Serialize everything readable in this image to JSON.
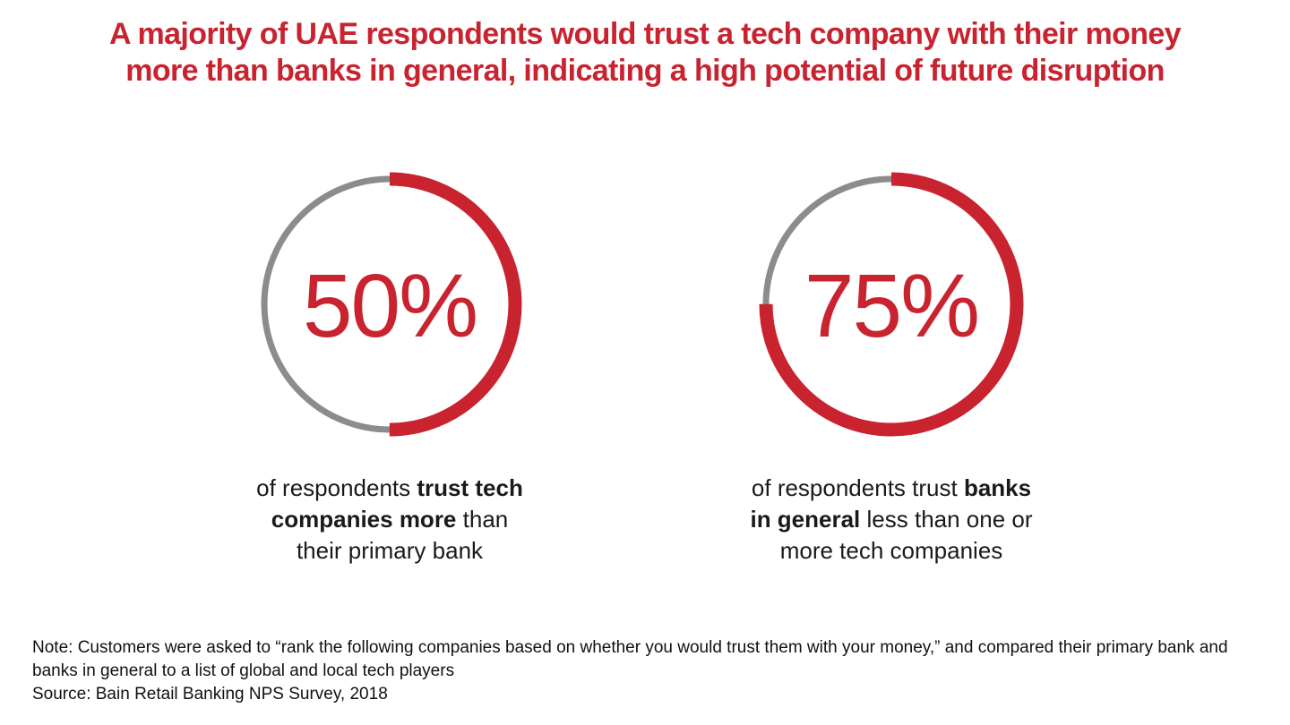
{
  "title": {
    "line1": "A majority of UAE respondents would trust a tech company with their money",
    "line2": "more than banks in general, indicating a high potential of future disruption"
  },
  "colors": {
    "accent_red": "#c8232f",
    "ring_gray": "#8c8c8c",
    "text_black": "#1a1a1a"
  },
  "chart_data": [
    {
      "type": "pie",
      "variant": "donut-ring",
      "value": 50,
      "remainder": 50,
      "label": "50%",
      "start_angle": "top",
      "direction": "clockwise",
      "filled_color": "#c8232f",
      "remainder_color": "#8c8c8c",
      "caption_lines": [
        [
          {
            "text": "of respondents ",
            "bold": false
          },
          {
            "text": "trust tech",
            "bold": true
          }
        ],
        [
          {
            "text": "companies more",
            "bold": true
          },
          {
            "text": " than",
            "bold": false
          }
        ],
        [
          {
            "text": "their primary bank",
            "bold": false
          }
        ]
      ]
    },
    {
      "type": "pie",
      "variant": "donut-ring",
      "value": 75,
      "remainder": 25,
      "label": "75%",
      "start_angle": "top",
      "direction": "clockwise",
      "filled_color": "#c8232f",
      "remainder_color": "#8c8c8c",
      "caption_lines": [
        [
          {
            "text": "of respondents trust ",
            "bold": false
          },
          {
            "text": "banks",
            "bold": true
          }
        ],
        [
          {
            "text": "in general",
            "bold": true
          },
          {
            "text": " less than one or",
            "bold": false
          }
        ],
        [
          {
            "text": "more tech companies",
            "bold": false
          }
        ]
      ]
    }
  ],
  "footnote": {
    "note": "Note: Customers were asked to “rank the following companies based on whether you would trust them with your money,” and compared their primary bank and banks in general to a list of global and local tech players",
    "source": "Source: Bain Retail Banking NPS Survey, 2018"
  }
}
